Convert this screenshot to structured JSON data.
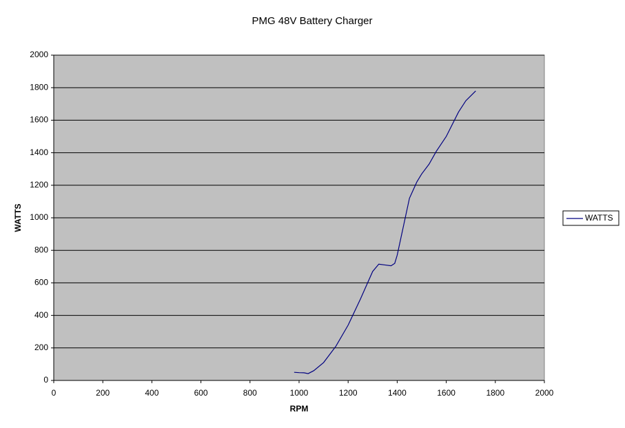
{
  "chart_data": {
    "type": "line",
    "title": "PMG 48V Battery Charger",
    "x_label": "RPM",
    "y_label": "WATTS",
    "xlim": [
      0,
      2000
    ],
    "xticks": [
      0,
      200,
      400,
      600,
      800,
      1000,
      1200,
      1400,
      1600,
      1800,
      2000
    ],
    "ylim": [
      0,
      2000
    ],
    "yticks": [
      0,
      200,
      400,
      600,
      800,
      1000,
      1200,
      1400,
      1600,
      1800,
      2000
    ],
    "grid": true,
    "legend": "right",
    "series": [
      {
        "name": "WATTS",
        "color": "#000080",
        "x": [
          980,
          1000,
          1020,
          1037,
          1060,
          1100,
          1150,
          1200,
          1250,
          1300,
          1325,
          1350,
          1375,
          1390,
          1400,
          1450,
          1480,
          1500,
          1530,
          1560,
          1600,
          1650,
          1680,
          1720
        ],
        "values": [
          50,
          48,
          47,
          42,
          60,
          110,
          210,
          340,
          500,
          670,
          715,
          710,
          705,
          720,
          770,
          1120,
          1220,
          1270,
          1330,
          1410,
          1500,
          1650,
          1720,
          1780
        ]
      }
    ]
  }
}
